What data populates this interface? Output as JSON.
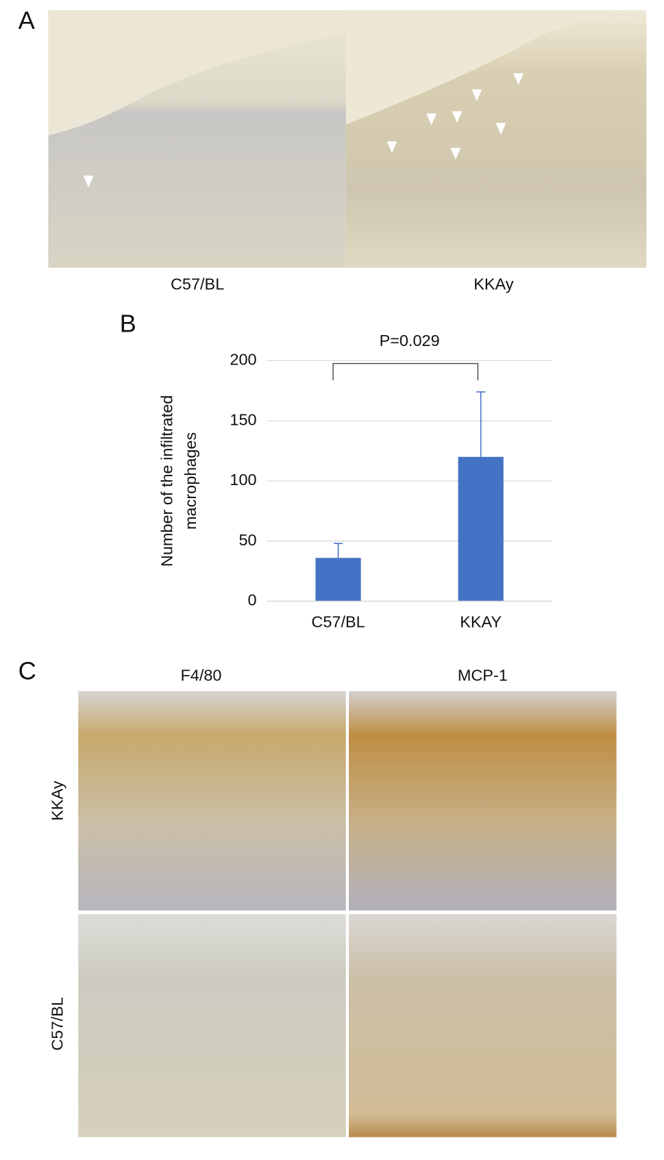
{
  "panel_labels": [
    "A",
    "B",
    "C"
  ],
  "panel_a": {
    "captions": [
      "C57/BL",
      "KKAy"
    ]
  },
  "chart_data": {
    "type": "bar",
    "y_label": [
      "Number of the infiltrated",
      "macrophages"
    ],
    "categories": [
      "C57/BL",
      "KKAY"
    ],
    "values": [
      36,
      120
    ],
    "errors": [
      12,
      54
    ],
    "color": "#4472c4",
    "ylim": [
      0,
      200
    ],
    "yticks": [
      0,
      50,
      100,
      150,
      200
    ],
    "grid": true,
    "annotation": "P=0.029"
  },
  "panel_c": {
    "columns": [
      "F4/80",
      "MCP-1"
    ],
    "rows": [
      "KKAy",
      "C57/BL"
    ]
  }
}
